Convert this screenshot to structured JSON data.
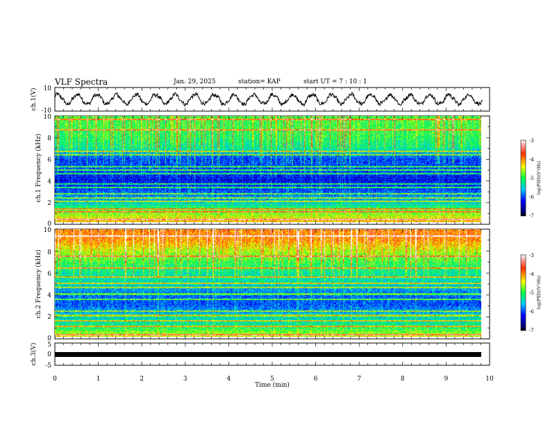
{
  "header": {
    "title": "VLF Spectra",
    "date": "Jan. 29, 2025",
    "station": "station= KAP",
    "start_ut": "start UT =  7 : 10 : 1"
  },
  "chart_data": [
    {
      "type": "line",
      "panel": "ch.1 waveform",
      "ylabel": "ch.1(V)",
      "y_ticks": [
        "10",
        "-10"
      ],
      "ylim": [
        -10,
        10
      ],
      "xlim": [
        0,
        10
      ],
      "x_end_min": 9.83,
      "trace_color": "#000000",
      "description_values": {
        "oscillation_period_min": 0.45,
        "amplitude_v": 4
      }
    },
    {
      "type": "heatmap",
      "panel": "ch.1 spectrogram",
      "ylabel": "ch.1 Frequency (kHz)",
      "y_ticks": [
        "0",
        "2",
        "4",
        "6",
        "8",
        "10"
      ],
      "ylim": [
        0,
        10
      ],
      "xlim": [
        0,
        10
      ],
      "x_end_min": 9.83,
      "colorbar": {
        "label": "log(PSD)(V²/Hz)",
        "ticks": [
          "-3",
          "-4",
          "-5",
          "-6",
          "-7"
        ],
        "range": [
          -7,
          -3
        ]
      },
      "bands_khz": [
        0.3,
        1.0,
        1.3,
        2.0,
        2.3,
        2.7,
        3.3,
        3.65,
        4.6,
        4.95,
        5.25,
        6.4,
        6.7,
        8.7,
        9.7
      ],
      "relative_psd_profile": [
        {
          "f": 0,
          "v": -4.2
        },
        {
          "f": 1,
          "v": -4.8
        },
        {
          "f": 2,
          "v": -5.6
        },
        {
          "f": 3,
          "v": -6.0
        },
        {
          "f": 4,
          "v": -6.3
        },
        {
          "f": 5,
          "v": -6.0
        },
        {
          "f": 6,
          "v": -6.1
        },
        {
          "f": 7,
          "v": -5.3
        },
        {
          "f": 8,
          "v": -5.1
        },
        {
          "f": 9,
          "v": -5.0
        },
        {
          "f": 10,
          "v": -5.0
        }
      ]
    },
    {
      "type": "heatmap",
      "panel": "ch.2 spectrogram",
      "ylabel": "ch.2 Frequency (kHz)",
      "y_ticks": [
        "0",
        "2",
        "4",
        "6",
        "8",
        "10"
      ],
      "ylim": [
        0,
        10
      ],
      "xlim": [
        0,
        10
      ],
      "x_end_min": 9.83,
      "colorbar": {
        "label": "log(PSD)(V²/Hz)",
        "ticks": [
          "-3",
          "-4",
          "-5",
          "-6",
          "-7"
        ],
        "range": [
          -7,
          -3
        ]
      },
      "bands_khz": [
        0.2,
        1.0,
        1.5,
        2.0,
        2.4,
        3.5,
        4.0,
        4.6,
        5.0,
        5.6,
        6.4,
        7.5,
        9.4
      ],
      "relative_psd_profile": [
        {
          "f": 0,
          "v": -4.4
        },
        {
          "f": 1,
          "v": -5.2
        },
        {
          "f": 2,
          "v": -5.5
        },
        {
          "f": 3,
          "v": -6.0
        },
        {
          "f": 4,
          "v": -5.9
        },
        {
          "f": 5,
          "v": -5.4
        },
        {
          "f": 6,
          "v": -5.3
        },
        {
          "f": 7,
          "v": -5.0
        },
        {
          "f": 8,
          "v": -4.6
        },
        {
          "f": 9,
          "v": -4.1
        },
        {
          "f": 10,
          "v": -4.0
        }
      ]
    },
    {
      "type": "line",
      "panel": "ch.3 waveform",
      "ylabel": "ch.3(V)",
      "y_ticks": [
        "5",
        "0",
        "-5"
      ],
      "ylim": [
        -5,
        5
      ],
      "xlim": [
        0,
        10
      ],
      "x_end_min": 9.83,
      "trace_value_v": 0,
      "trace_color": "#000000"
    }
  ],
  "x_axis": {
    "label": "Time (min)",
    "ticks": [
      "0",
      "1",
      "2",
      "3",
      "4",
      "5",
      "6",
      "7",
      "8",
      "9",
      "10"
    ]
  }
}
